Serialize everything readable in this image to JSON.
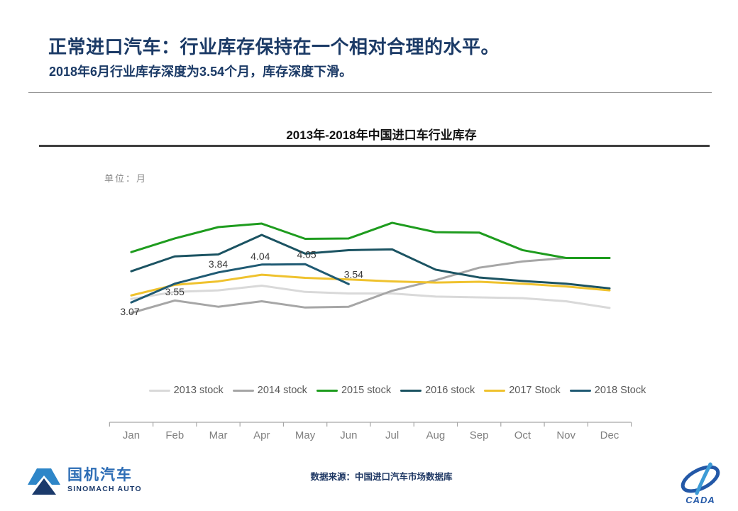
{
  "header": {
    "title": "正常进口汽车：行业库存保持在一个相对合理的水平。",
    "subtitle": "2018年6月行业库存深度为3.54个月，库存深度下滑。",
    "title_color": "#1B3A66"
  },
  "chart": {
    "title": "2013年-2018年中国进口车行业库存",
    "unit_label": "单位：月"
  },
  "chart_data": {
    "type": "line",
    "title": "2013年-2018年中国进口车行业库存",
    "unit": "月",
    "categories": [
      "Jan",
      "Feb",
      "Mar",
      "Apr",
      "May",
      "Jun",
      "Jul",
      "Aug",
      "Sep",
      "Oct",
      "Nov",
      "Dec"
    ],
    "series": [
      {
        "name": "2013 stock",
        "color": "#D9D9D9",
        "values": [
          3.16,
          3.34,
          3.38,
          3.5,
          3.34,
          3.3,
          3.3,
          3.22,
          3.2,
          3.18,
          3.1,
          2.93
        ]
      },
      {
        "name": "2014 stock",
        "color": "#A6A6A6",
        "values": [
          2.8,
          3.12,
          2.96,
          3.1,
          2.94,
          2.96,
          3.37,
          3.64,
          3.96,
          4.12,
          4.21,
          4.21
        ]
      },
      {
        "name": "2015 stock",
        "color": "#1E9C1E",
        "values": [
          4.36,
          4.71,
          5.0,
          5.09,
          4.7,
          4.71,
          5.11,
          4.87,
          4.86,
          4.41,
          4.21,
          4.21
        ]
      },
      {
        "name": "2016 stock",
        "color": "#1B5362",
        "values": [
          3.87,
          4.25,
          4.3,
          4.8,
          4.32,
          4.41,
          4.43,
          3.91,
          3.71,
          3.62,
          3.55,
          3.43
        ]
      },
      {
        "name": "2017 Stock",
        "color": "#EFC22E",
        "values": [
          3.25,
          3.52,
          3.61,
          3.78,
          3.7,
          3.66,
          3.61,
          3.58,
          3.6,
          3.55,
          3.48,
          3.38
        ]
      },
      {
        "name": "2018 Stock",
        "color": "#1F5A73",
        "data_labels": true,
        "values": [
          3.07,
          3.55,
          3.84,
          4.04,
          4.05,
          3.54
        ]
      }
    ],
    "ylim": [
      0,
      5.9
    ],
    "grid": false,
    "legend_position": "bottom",
    "axis_color": "#A6A6A6",
    "tick_label_color": "#7F7F7F",
    "data_label_color": "#3A3A3A"
  },
  "footer": {
    "source": "数据来源：中国进口汽车市场数据库"
  },
  "logos": {
    "left": {
      "name": "国机汽车",
      "sub": "SINOMACH AUTO"
    },
    "right": {
      "name": "CADA"
    }
  }
}
